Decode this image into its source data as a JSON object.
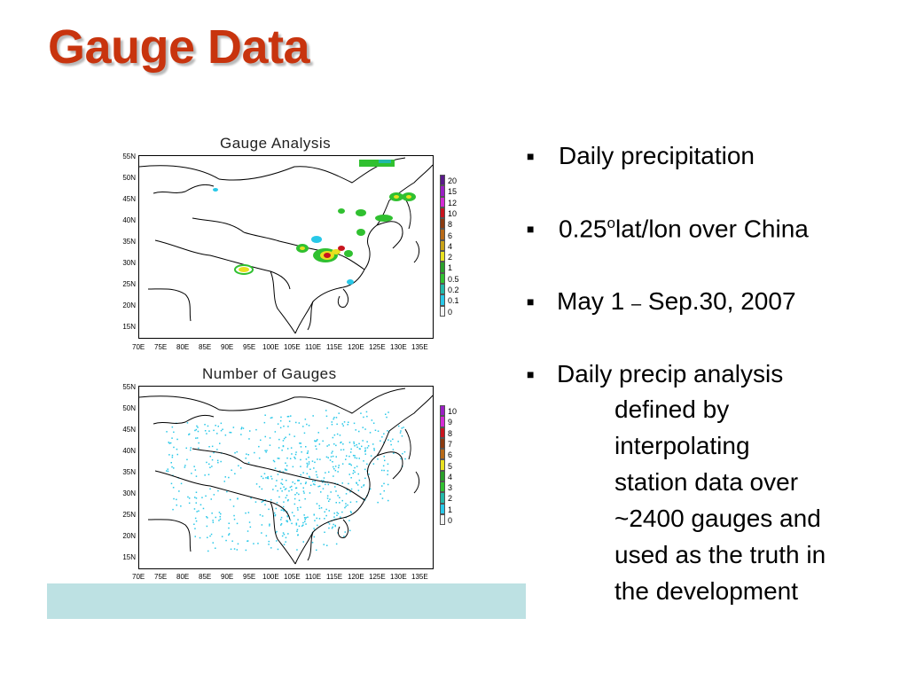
{
  "title": "Gauge Data",
  "maps": [
    {
      "title": "Gauge Analysis",
      "lat_labels": [
        "55N",
        "50N",
        "45N",
        "40N",
        "35N",
        "30N",
        "25N",
        "20N",
        "15N"
      ],
      "lon_labels": [
        "70E",
        "75E",
        "80E",
        "85E",
        "90E",
        "95E",
        "100E",
        "105E",
        "110E",
        "115E",
        "120E",
        "125E",
        "130E",
        "135E"
      ],
      "colorbar": {
        "labels": [
          "20",
          "15",
          "12",
          "10",
          "8",
          "6",
          "4",
          "2",
          "1",
          "0.5",
          "0.2",
          "0.1",
          "0"
        ],
        "colors": [
          "#5a1a8a",
          "#9b1fc4",
          "#d42bd4",
          "#c8141e",
          "#8a3a10",
          "#b86a18",
          "#c8a218",
          "#e8e020",
          "#2aa02a",
          "#30c030",
          "#22b8a8",
          "#28c8e8",
          "#f4f4f4"
        ]
      }
    },
    {
      "title": "Number of Gauges",
      "lat_labels": [
        "55N",
        "50N",
        "45N",
        "40N",
        "35N",
        "30N",
        "25N",
        "20N",
        "15N"
      ],
      "lon_labels": [
        "70E",
        "75E",
        "80E",
        "85E",
        "90E",
        "95E",
        "100E",
        "105E",
        "110E",
        "115E",
        "120E",
        "125E",
        "130E",
        "135E"
      ],
      "colorbar": {
        "labels": [
          "10",
          "9",
          "8",
          "7",
          "6",
          "5",
          "4",
          "3",
          "2",
          "1",
          "0"
        ],
        "colors": [
          "#9b1fc4",
          "#d42bd4",
          "#c8141e",
          "#8a3a10",
          "#b86a18",
          "#e8e020",
          "#2aa02a",
          "#30c030",
          "#22b8a8",
          "#28c8e8",
          "#f4f4f4"
        ]
      }
    }
  ],
  "bullets": [
    {
      "text": " Daily precipitation"
    },
    {
      "text": " 0.25",
      "sup": "o",
      "after": "lat/lon over China"
    },
    {
      "text": "May 1 ",
      "dash": "–",
      "after": " Sep.30, 2007"
    },
    {
      "text": "Daily precip analysis",
      "continuation": [
        "defined by",
        "interpolating",
        "station data over",
        "~2400 gauges and",
        "used as the truth in",
        "the development"
      ]
    }
  ]
}
